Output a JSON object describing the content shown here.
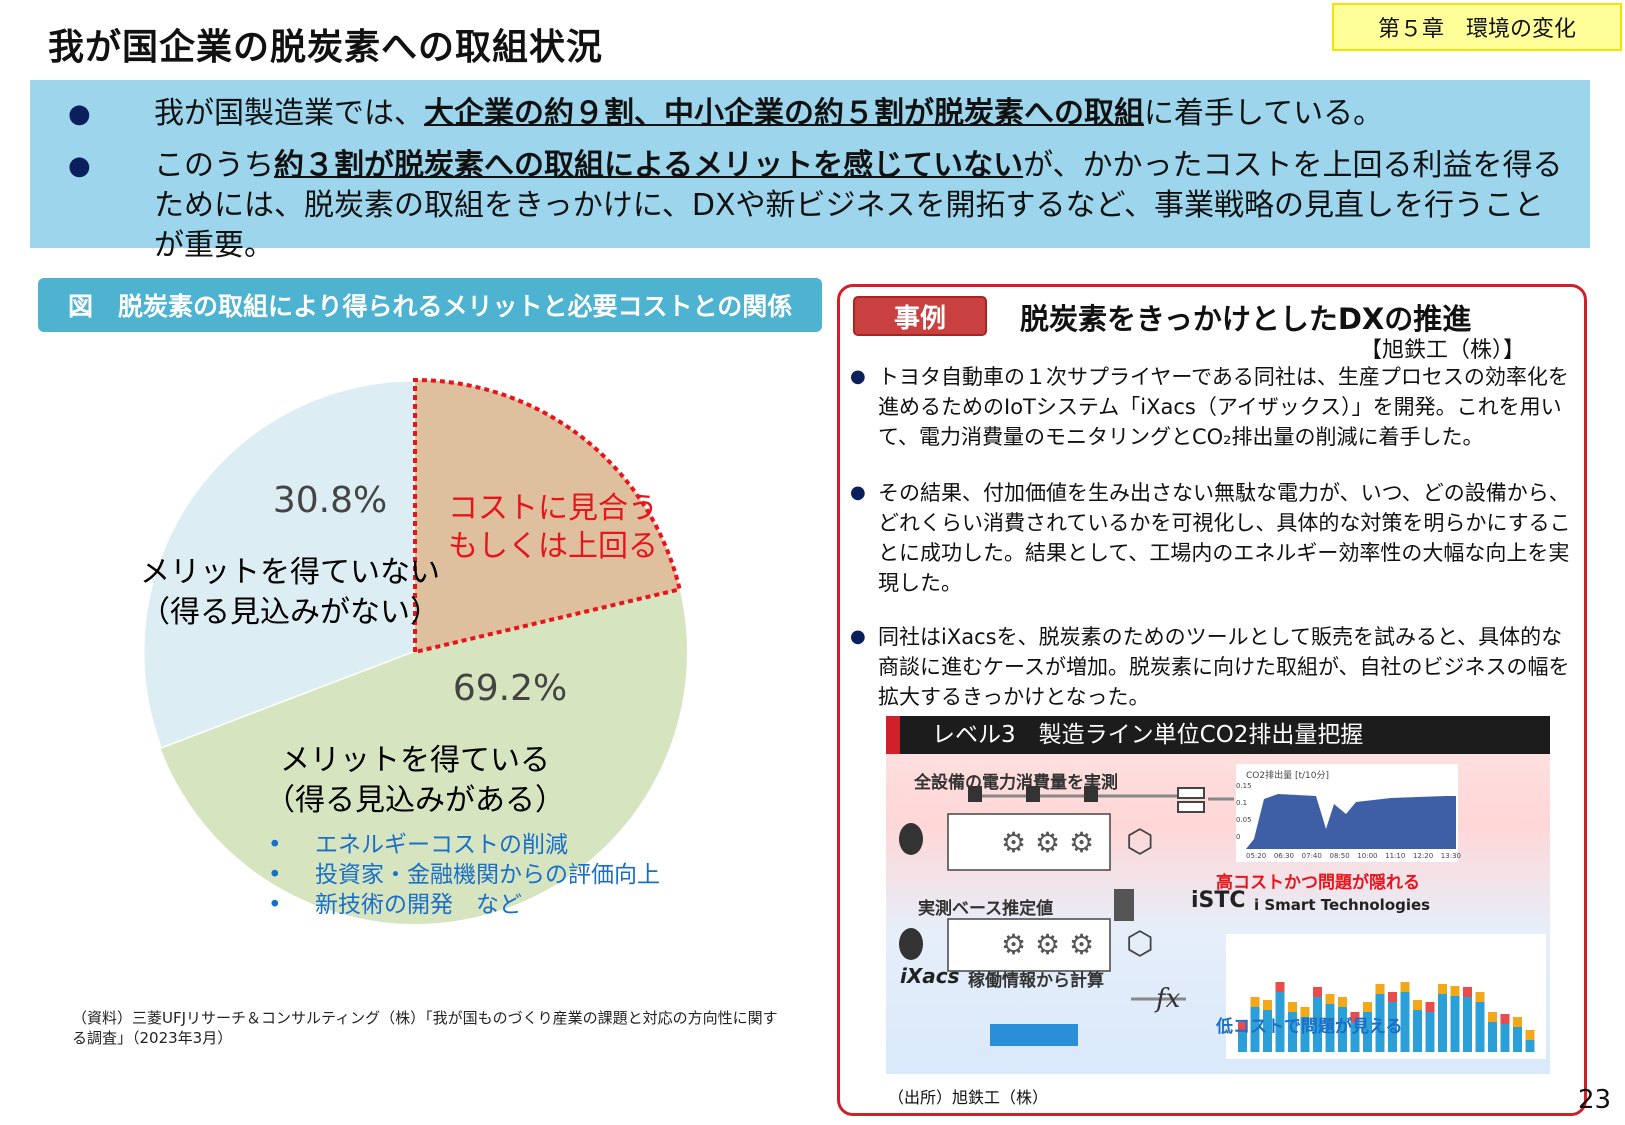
{
  "header": {
    "title": "我が国企業の脱炭素への取組状況",
    "chapter": "第５章　環境の変化"
  },
  "summary": {
    "bullets": [
      {
        "pre": "我が国製造業では、",
        "emph": "大企業の約９割、中小企業の約５割が脱炭素への取組",
        "post": "に着手している。"
      },
      {
        "pre": "このうち",
        "emph": "約３割が脱炭素への取組によるメリットを感じていない",
        "post": "が、かかったコストを上回る利益を得るためには、脱炭素の取組をきっかけに、DXや新ビジネスを開拓するなど、事業戦略の見直しを行うことが重要。"
      }
    ]
  },
  "figure": {
    "title": "図　脱炭素の取組により得られるメリットと必要コストとの関係",
    "source": "（資料）三菱UFJリサーチ＆コンサルティング（株）「我が国ものづくり産業の課題と対応の方向性に関する調査」（2023年3月）"
  },
  "chart_data": {
    "type": "pie",
    "slices": [
      {
        "label": "メリットを得ている（得る見込みがある）",
        "value": 69.2,
        "value_label": "69.2%",
        "color": "#d6e4bf",
        "sub_slice": {
          "label": "コストに見合うもしくは上回る",
          "approx_value": 21.3,
          "color": "#dfc09e",
          "outline": "#e8141c"
        },
        "examples": [
          "エネルギーコストの削減",
          "投資家・金融機関からの評価向上",
          "新技術の開発　など"
        ]
      },
      {
        "label": "メリットを得ていない（得る見込みがない）",
        "value": 30.8,
        "value_label": "30.8%",
        "color": "#dcedf3"
      }
    ],
    "start": "12 o'clock",
    "direction": "clockwise"
  },
  "case": {
    "tag": "事例",
    "title": "脱炭素をきっかけとしたDXの推進",
    "company": "【旭鉄工（株）】",
    "bullets": [
      "トヨタ自動車の１次サプライヤーである同社は、生産プロセスの効率化を進めるためのIoTシステム「iXacs（アイザックス）」を開発。これを用いて、電力消費量のモニタリングとCO₂排出量の削減に着手した。",
      "その結果、付加価値を生み出さない無駄な電力が、いつ、どの設備から、どれくらい消費されているかを可視化し、具体的な対策を明らかにすることに成功した。結果として、工場内のエネルギー効率性の大幅な向上を実現した。",
      "同社はiXacsを、脱炭素のためのツールとして販売を試みると、具体的な商談に進むケースが増加。脱炭素に向けた取組が、自社のビジネスの幅を拡大するきっかけとなった。"
    ],
    "diagram": {
      "header": "レベル3　製造ライン単位CO2排出量把握",
      "row1": "全設備の電力消費量を実測",
      "row2": "実測ベース推定値",
      "chart_title": "CO2排出量 [t/10分]",
      "y_ticks": [
        "0.15",
        "0.1",
        "0.05",
        "0"
      ],
      "x_ticks": [
        "05:20",
        "06:30",
        "07:40",
        "08:50",
        "10:00",
        "11:10",
        "12:20",
        "13:30"
      ],
      "high_cost": "高コストかつ問題が隠れる",
      "low_cost": "低コストで問題が見える",
      "istc": "iSTC",
      "istc_name": "i Smart Technologies",
      "ixacs": "iXacs",
      "ixacs_calc": "稼働情報から計算",
      "fx": "fx"
    },
    "credit": "（出所）旭鉄工（株）"
  },
  "page_number": "23"
}
